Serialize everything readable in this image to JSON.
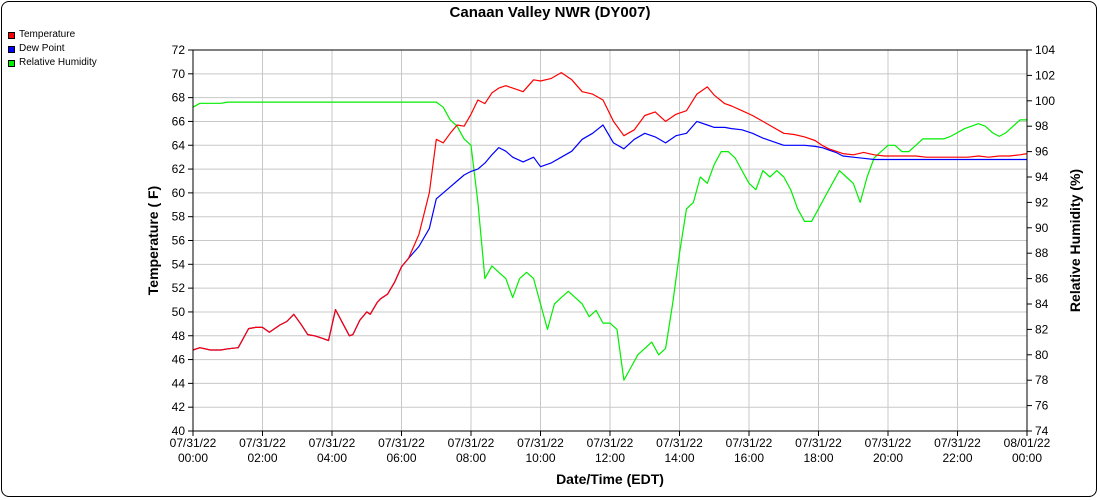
{
  "chart_data": {
    "type": "line",
    "title": "Canaan Valley NWR (DY007)",
    "xlabel": "Date/Time (EDT)",
    "ylabel": "Temperature ( F)",
    "y2label": "Relative Humidity (%)",
    "ylim": [
      40,
      72
    ],
    "y2lim": [
      74,
      104
    ],
    "xlim": [
      0,
      24
    ],
    "yticks": [
      "40",
      "42",
      "44",
      "46",
      "48",
      "50",
      "52",
      "54",
      "56",
      "58",
      "60",
      "62",
      "64",
      "66",
      "68",
      "70",
      "72"
    ],
    "y2ticks": [
      "74",
      "76",
      "78",
      "80",
      "82",
      "84",
      "86",
      "88",
      "90",
      "92",
      "94",
      "96",
      "98",
      "100",
      "102",
      "104"
    ],
    "xticks": [
      {
        "date": "07/31/22",
        "time": "00:00"
      },
      {
        "date": "07/31/22",
        "time": "02:00"
      },
      {
        "date": "07/31/22",
        "time": "04:00"
      },
      {
        "date": "07/31/22",
        "time": "06:00"
      },
      {
        "date": "07/31/22",
        "time": "08:00"
      },
      {
        "date": "07/31/22",
        "time": "10:00"
      },
      {
        "date": "07/31/22",
        "time": "12:00"
      },
      {
        "date": "07/31/22",
        "time": "14:00"
      },
      {
        "date": "07/31/22",
        "time": "16:00"
      },
      {
        "date": "07/31/22",
        "time": "18:00"
      },
      {
        "date": "07/31/22",
        "time": "20:00"
      },
      {
        "date": "07/31/22",
        "time": "22:00"
      },
      {
        "date": "08/01/22",
        "time": "00:00"
      }
    ],
    "grid": true,
    "legend_position": "top-left",
    "series": [
      {
        "name": "Temperature",
        "color": "#ff0000",
        "axis": "left",
        "x": [
          0,
          0.2,
          0.5,
          0.8,
          1.0,
          1.3,
          1.6,
          1.8,
          2.0,
          2.2,
          2.5,
          2.7,
          2.9,
          3.1,
          3.3,
          3.5,
          3.7,
          3.9,
          4.1,
          4.3,
          4.5,
          4.6,
          4.8,
          5.0,
          5.1,
          5.3,
          5.4,
          5.6,
          5.8,
          6.0,
          6.2,
          6.5,
          6.8,
          7.0,
          7.2,
          7.4,
          7.6,
          7.8,
          8.0,
          8.2,
          8.4,
          8.6,
          8.8,
          9.0,
          9.2,
          9.5,
          9.8,
          10.0,
          10.3,
          10.6,
          10.9,
          11.2,
          11.5,
          11.8,
          12.1,
          12.4,
          12.7,
          13.0,
          13.3,
          13.6,
          13.9,
          14.2,
          14.5,
          14.8,
          15.0,
          15.3,
          15.5,
          15.8,
          16.1,
          16.4,
          16.7,
          17.0,
          17.3,
          17.6,
          17.9,
          18.1,
          18.3,
          18.5,
          18.7,
          19.0,
          19.3,
          19.6,
          19.9,
          20.2,
          20.5,
          20.8,
          21.1,
          21.4,
          21.7,
          22.0,
          22.3,
          22.6,
          22.9,
          23.2,
          23.5,
          23.8,
          24.0
        ],
        "values": [
          46.8,
          47.0,
          46.8,
          46.8,
          46.9,
          47.0,
          48.6,
          48.7,
          48.7,
          48.3,
          48.9,
          49.2,
          49.8,
          49.0,
          48.1,
          48.0,
          47.8,
          47.6,
          50.2,
          49.1,
          48.0,
          48.1,
          49.3,
          50.0,
          49.8,
          50.8,
          51.1,
          51.5,
          52.5,
          53.8,
          54.5,
          56.5,
          60.0,
          64.5,
          64.2,
          65.0,
          65.7,
          65.6,
          66.6,
          67.8,
          67.5,
          68.4,
          68.8,
          69.0,
          68.8,
          68.5,
          69.5,
          69.4,
          69.6,
          70.1,
          69.5,
          68.5,
          68.3,
          67.8,
          66.0,
          64.8,
          65.3,
          66.5,
          66.8,
          66.0,
          66.6,
          66.9,
          68.3,
          68.9,
          68.2,
          67.5,
          67.3,
          66.9,
          66.5,
          66.0,
          65.5,
          65.0,
          64.9,
          64.7,
          64.4,
          64.0,
          63.7,
          63.5,
          63.3,
          63.2,
          63.4,
          63.2,
          63.1,
          63.1,
          63.1,
          63.1,
          63.0,
          63.0,
          63.0,
          63.0,
          63.0,
          63.1,
          63.0,
          63.1,
          63.1,
          63.2,
          63.3
        ]
      },
      {
        "name": "Dew Point",
        "color": "#0000ff",
        "axis": "left",
        "x": [
          0,
          0.2,
          0.5,
          0.8,
          1.0,
          1.3,
          1.6,
          1.8,
          2.0,
          2.2,
          2.5,
          2.7,
          2.9,
          3.1,
          3.3,
          3.5,
          3.7,
          3.9,
          4.1,
          4.3,
          4.5,
          4.6,
          4.8,
          5.0,
          5.1,
          5.3,
          5.4,
          5.6,
          5.8,
          6.0,
          6.2,
          6.5,
          6.8,
          7.0,
          7.2,
          7.4,
          7.6,
          7.8,
          8.0,
          8.2,
          8.4,
          8.6,
          8.8,
          9.0,
          9.2,
          9.5,
          9.8,
          10.0,
          10.3,
          10.6,
          10.9,
          11.2,
          11.5,
          11.8,
          12.1,
          12.4,
          12.7,
          13.0,
          13.3,
          13.6,
          13.9,
          14.2,
          14.5,
          14.8,
          15.0,
          15.3,
          15.5,
          15.8,
          16.1,
          16.4,
          16.7,
          17.0,
          17.3,
          17.6,
          17.9,
          18.1,
          18.3,
          18.5,
          18.7,
          19.0,
          19.3,
          19.6,
          19.9,
          20.2,
          20.5,
          20.8,
          21.1,
          21.4,
          21.7,
          22.0,
          22.3,
          22.6,
          22.9,
          23.2,
          23.5,
          23.8,
          24.0
        ],
        "values": [
          46.8,
          47.0,
          46.8,
          46.8,
          46.9,
          47.0,
          48.6,
          48.7,
          48.7,
          48.3,
          48.9,
          49.2,
          49.8,
          49.0,
          48.1,
          48.0,
          47.8,
          47.6,
          50.2,
          49.1,
          48.0,
          48.1,
          49.3,
          50.0,
          49.8,
          50.8,
          51.1,
          51.5,
          52.5,
          53.8,
          54.5,
          55.5,
          57.0,
          59.5,
          60.0,
          60.5,
          61.0,
          61.5,
          61.8,
          62.0,
          62.5,
          63.2,
          63.8,
          63.5,
          63.0,
          62.6,
          63.0,
          62.2,
          62.5,
          63.0,
          63.5,
          64.5,
          65.0,
          65.7,
          64.2,
          63.7,
          64.5,
          65.0,
          64.7,
          64.2,
          64.8,
          65.0,
          66.0,
          65.7,
          65.5,
          65.5,
          65.4,
          65.3,
          65.0,
          64.6,
          64.3,
          64.0,
          64.0,
          64.0,
          63.9,
          63.8,
          63.6,
          63.4,
          63.1,
          63.0,
          62.9,
          62.8,
          62.8,
          62.8,
          62.8,
          62.8,
          62.8,
          62.8,
          62.8,
          62.8,
          62.8,
          62.8,
          62.8,
          62.8,
          62.8,
          62.8,
          62.8
        ]
      },
      {
        "name": "Relative Humidity",
        "color": "#00ee00",
        "axis": "right",
        "x": [
          0,
          0.2,
          0.5,
          0.8,
          1.0,
          1.5,
          2.0,
          3.0,
          4.0,
          5.0,
          6.0,
          6.5,
          7.0,
          7.2,
          7.4,
          7.6,
          7.8,
          8.0,
          8.2,
          8.4,
          8.6,
          8.8,
          9.0,
          9.2,
          9.4,
          9.6,
          9.8,
          10.0,
          10.2,
          10.4,
          10.6,
          10.8,
          11.0,
          11.2,
          11.4,
          11.6,
          11.8,
          12.0,
          12.2,
          12.4,
          12.6,
          12.8,
          13.0,
          13.2,
          13.4,
          13.6,
          13.8,
          14.0,
          14.2,
          14.4,
          14.6,
          14.8,
          15.0,
          15.2,
          15.4,
          15.6,
          15.8,
          16.0,
          16.2,
          16.4,
          16.6,
          16.8,
          17.0,
          17.2,
          17.4,
          17.6,
          17.8,
          18.0,
          18.2,
          18.4,
          18.6,
          18.8,
          19.0,
          19.2,
          19.4,
          19.6,
          19.8,
          20.0,
          20.2,
          20.4,
          20.6,
          20.8,
          21.0,
          21.2,
          21.4,
          21.6,
          21.8,
          22.0,
          22.2,
          22.4,
          22.6,
          22.8,
          23.0,
          23.2,
          23.4,
          23.6,
          23.8,
          24.0
        ],
        "values": [
          99.5,
          99.8,
          99.8,
          99.8,
          99.9,
          99.9,
          99.9,
          99.9,
          99.9,
          99.9,
          99.9,
          99.9,
          99.9,
          99.5,
          98.5,
          98.0,
          97.0,
          96.5,
          92.0,
          86.0,
          87.0,
          86.5,
          86.0,
          84.5,
          86.0,
          86.5,
          86.0,
          84.0,
          82.0,
          84.0,
          84.5,
          85.0,
          84.5,
          84.0,
          83.0,
          83.5,
          82.5,
          82.5,
          82.0,
          78.0,
          79.0,
          80.0,
          80.5,
          81.0,
          80.0,
          80.5,
          84.0,
          88.0,
          91.5,
          92.0,
          94.0,
          93.5,
          95.0,
          96.0,
          96.0,
          95.5,
          94.5,
          93.5,
          93.0,
          94.5,
          94.0,
          94.5,
          94.0,
          93.0,
          91.5,
          90.5,
          90.5,
          91.5,
          92.5,
          93.5,
          94.5,
          94.0,
          93.5,
          92.0,
          94.0,
          95.5,
          96.0,
          96.5,
          96.5,
          96.0,
          96.0,
          96.5,
          97.0,
          97.0,
          97.0,
          97.0,
          97.2,
          97.5,
          97.8,
          98.0,
          98.2,
          98.0,
          97.5,
          97.2,
          97.5,
          98.0,
          98.5,
          98.5
        ]
      }
    ]
  }
}
